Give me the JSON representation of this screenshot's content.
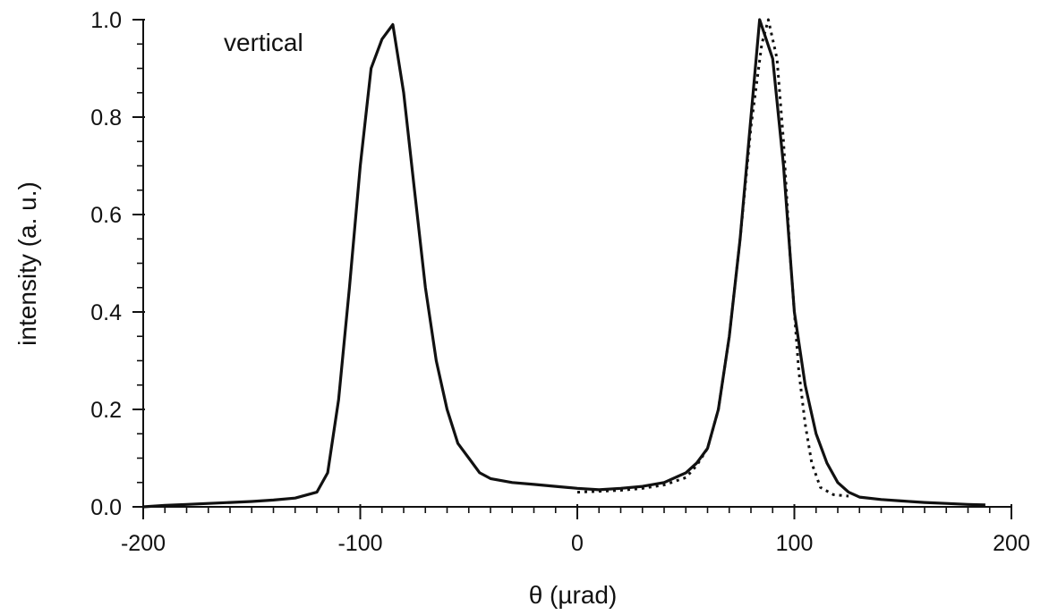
{
  "chart_data": {
    "type": "line",
    "title": "",
    "xlabel": "θ (µrad)",
    "ylabel": "intensity (a. u.)",
    "annotation": "vertical",
    "xlim": [
      -200,
      200
    ],
    "ylim": [
      0,
      1.0
    ],
    "xticks": [
      -200,
      -100,
      0,
      100,
      200
    ],
    "xtick_labels": [
      "-200",
      "-100",
      "0",
      "100",
      "200"
    ],
    "yticks": [
      0.0,
      0.2,
      0.4,
      0.6,
      0.8,
      1.0
    ],
    "ytick_labels": [
      "0.0",
      "0.2",
      "0.4",
      "0.6",
      "0.8",
      "1.0"
    ],
    "x_minor_step": 10,
    "y_minor_step": 0.05,
    "grid": false,
    "colors": {
      "line": "#111111"
    },
    "series": [
      {
        "style": "solid",
        "points": [
          [
            -200,
            0.0
          ],
          [
            -190,
            0.003
          ],
          [
            -180,
            0.005
          ],
          [
            -170,
            0.007
          ],
          [
            -160,
            0.009
          ],
          [
            -150,
            0.011
          ],
          [
            -140,
            0.014
          ],
          [
            -130,
            0.018
          ],
          [
            -120,
            0.03
          ],
          [
            -115,
            0.07
          ],
          [
            -110,
            0.22
          ],
          [
            -105,
            0.45
          ],
          [
            -100,
            0.7
          ],
          [
            -95,
            0.9
          ],
          [
            -90,
            0.96
          ],
          [
            -85,
            0.99
          ],
          [
            -80,
            0.85
          ],
          [
            -75,
            0.65
          ],
          [
            -70,
            0.45
          ],
          [
            -65,
            0.3
          ],
          [
            -60,
            0.2
          ],
          [
            -55,
            0.13
          ],
          [
            -50,
            0.1
          ],
          [
            -45,
            0.07
          ],
          [
            -40,
            0.058
          ],
          [
            -30,
            0.05
          ],
          [
            -20,
            0.046
          ],
          [
            -10,
            0.042
          ],
          [
            0,
            0.038
          ],
          [
            10,
            0.035
          ],
          [
            20,
            0.038
          ],
          [
            30,
            0.042
          ],
          [
            40,
            0.05
          ],
          [
            50,
            0.07
          ],
          [
            55,
            0.09
          ],
          [
            60,
            0.12
          ],
          [
            65,
            0.2
          ],
          [
            70,
            0.35
          ],
          [
            75,
            0.55
          ],
          [
            80,
            0.8
          ],
          [
            84,
            1.0
          ],
          [
            90,
            0.92
          ],
          [
            95,
            0.7
          ],
          [
            100,
            0.4
          ],
          [
            105,
            0.25
          ],
          [
            110,
            0.15
          ],
          [
            115,
            0.09
          ],
          [
            120,
            0.05
          ],
          [
            125,
            0.03
          ],
          [
            130,
            0.02
          ],
          [
            140,
            0.015
          ],
          [
            150,
            0.012
          ],
          [
            160,
            0.009
          ],
          [
            170,
            0.007
          ],
          [
            180,
            0.005
          ],
          [
            188,
            0.004
          ]
        ]
      },
      {
        "style": "dotted",
        "points": [
          [
            0,
            0.03
          ],
          [
            10,
            0.032
          ],
          [
            20,
            0.034
          ],
          [
            30,
            0.038
          ],
          [
            40,
            0.045
          ],
          [
            50,
            0.06
          ],
          [
            55,
            0.085
          ],
          [
            60,
            0.12
          ],
          [
            65,
            0.2
          ],
          [
            70,
            0.35
          ],
          [
            75,
            0.55
          ],
          [
            80,
            0.78
          ],
          [
            85,
            0.95
          ],
          [
            88,
            1.0
          ],
          [
            92,
            0.92
          ],
          [
            95,
            0.75
          ],
          [
            98,
            0.52
          ],
          [
            100,
            0.4
          ],
          [
            102,
            0.28
          ],
          [
            105,
            0.17
          ],
          [
            108,
            0.09
          ],
          [
            112,
            0.04
          ],
          [
            118,
            0.025
          ],
          [
            125,
            0.022
          ]
        ]
      }
    ]
  }
}
